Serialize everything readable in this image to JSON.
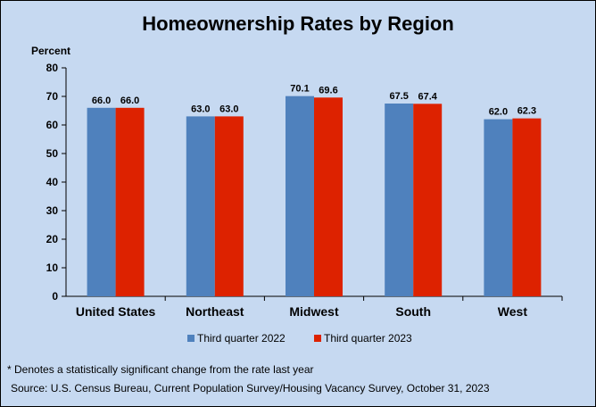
{
  "chart_data": {
    "type": "bar",
    "title": "Homeownership Rates by Region",
    "ylabel": "Percent",
    "xlabel": "",
    "ylim": [
      0,
      80
    ],
    "yticks": [
      0,
      10,
      20,
      30,
      40,
      50,
      60,
      70,
      80
    ],
    "categories": [
      "United States",
      "Northeast",
      "Midwest",
      "South",
      "West"
    ],
    "series": [
      {
        "name": "Third quarter 2022",
        "color": "#4f81bd",
        "values": [
          66.0,
          63.0,
          70.1,
          67.5,
          62.0
        ],
        "labels": [
          "66.0",
          "63.0",
          "70.1",
          "67.5",
          "62.0"
        ]
      },
      {
        "name": "Third quarter 2023",
        "color": "#dd2200",
        "values": [
          66.0,
          63.0,
          69.6,
          67.4,
          62.3
        ],
        "labels": [
          "66.0",
          "63.0",
          "69.6",
          "67.4",
          "62.3"
        ]
      }
    ],
    "legend_position": "bottom",
    "grid": false
  },
  "footnote": "* Denotes a statistically significant change from the rate last year",
  "source": "Source: U.S. Census Bureau, Current Population Survey/Housing Vacancy Survey, October 31, 2023",
  "colors": {
    "background": "#c6d9f1"
  }
}
